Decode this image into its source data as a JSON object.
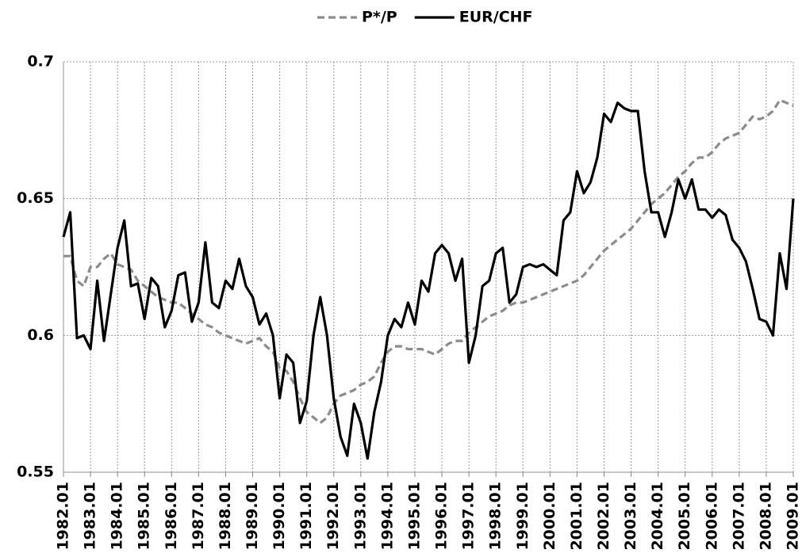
{
  "chart_data": {
    "type": "line",
    "categories": [
      "1982.01",
      null,
      null,
      null,
      "1983.01",
      null,
      null,
      null,
      "1984.01",
      null,
      null,
      null,
      "1985.01",
      null,
      null,
      null,
      "1986.01",
      null,
      null,
      null,
      "1987.01",
      null,
      null,
      null,
      "1988.01",
      null,
      null,
      null,
      "1989.01",
      null,
      null,
      null,
      "1990.01",
      null,
      null,
      null,
      "1991.01",
      null,
      null,
      null,
      "1992.01",
      null,
      null,
      null,
      "1993.01",
      null,
      null,
      null,
      "1994.01",
      null,
      null,
      null,
      "1995.01",
      null,
      null,
      null,
      "1996.01",
      null,
      null,
      null,
      "1997.01",
      null,
      null,
      null,
      "1998.01",
      null,
      null,
      null,
      "1999.01",
      null,
      null,
      null,
      "2000.01",
      null,
      null,
      null,
      "2001.01",
      null,
      null,
      null,
      "2002.01",
      null,
      null,
      null,
      "2003.01",
      null,
      null,
      null,
      "2004.01",
      null,
      null,
      null,
      "2005.01",
      null,
      null,
      null,
      "2006.01",
      null,
      null,
      null,
      "2007.01",
      null,
      null,
      null,
      "2008.01",
      null,
      null,
      null,
      "2009.01"
    ],
    "series": [
      {
        "name": "P*/P",
        "color": "#8c8c8c",
        "dashed": true,
        "values": [
          0.629,
          0.629,
          0.62,
          0.618,
          0.625,
          0.625,
          0.628,
          0.63,
          0.626,
          0.625,
          0.624,
          0.62,
          0.618,
          0.616,
          0.614,
          0.613,
          0.612,
          0.612,
          0.61,
          0.608,
          0.606,
          0.604,
          0.603,
          0.601,
          0.6,
          0.599,
          0.598,
          0.597,
          0.598,
          0.599,
          0.596,
          0.594,
          0.588,
          0.587,
          0.583,
          0.577,
          0.572,
          0.57,
          0.568,
          0.57,
          0.575,
          0.578,
          0.579,
          0.58,
          0.582,
          0.583,
          0.585,
          0.59,
          0.594,
          0.596,
          0.596,
          0.595,
          0.595,
          0.595,
          0.594,
          0.593,
          0.595,
          0.597,
          0.598,
          0.598,
          0.601,
          0.603,
          0.605,
          0.607,
          0.608,
          0.609,
          0.611,
          0.612,
          0.612,
          0.613,
          0.614,
          0.615,
          0.616,
          0.617,
          0.618,
          0.619,
          0.62,
          0.622,
          0.625,
          0.628,
          0.631,
          0.633,
          0.635,
          0.637,
          0.639,
          0.642,
          0.645,
          0.648,
          0.65,
          0.652,
          0.655,
          0.658,
          0.66,
          0.663,
          0.665,
          0.665,
          0.667,
          0.67,
          0.672,
          0.673,
          0.674,
          0.677,
          0.68,
          0.679,
          0.68,
          0.682,
          0.686,
          0.685,
          0.684
        ]
      },
      {
        "name": "EUR/CHF",
        "color": "#000000",
        "dashed": false,
        "values": [
          0.636,
          0.645,
          0.599,
          0.6,
          0.595,
          0.62,
          0.598,
          0.615,
          0.632,
          0.642,
          0.618,
          0.619,
          0.606,
          0.621,
          0.618,
          0.603,
          0.609,
          0.622,
          0.623,
          0.605,
          0.612,
          0.634,
          0.612,
          0.61,
          0.62,
          0.617,
          0.628,
          0.618,
          0.614,
          0.604,
          0.608,
          0.6,
          0.577,
          0.593,
          0.59,
          0.568,
          0.576,
          0.6,
          0.614,
          0.6,
          0.577,
          0.563,
          0.556,
          0.575,
          0.568,
          0.555,
          0.572,
          0.583,
          0.6,
          0.606,
          0.603,
          0.612,
          0.604,
          0.62,
          0.616,
          0.63,
          0.633,
          0.63,
          0.62,
          0.628,
          0.59,
          0.6,
          0.618,
          0.62,
          0.63,
          0.632,
          0.612,
          0.615,
          0.625,
          0.626,
          0.625,
          0.626,
          0.624,
          0.622,
          0.642,
          0.645,
          0.66,
          0.652,
          0.656,
          0.665,
          0.681,
          0.678,
          0.685,
          0.683,
          0.682,
          0.682,
          0.66,
          0.645,
          0.645,
          0.636,
          0.645,
          0.657,
          0.65,
          0.657,
          0.646,
          0.646,
          0.643,
          0.646,
          0.644,
          0.635,
          0.632,
          0.627,
          0.617,
          0.606,
          0.605,
          0.6,
          0.63,
          0.617,
          0.65
        ]
      }
    ],
    "ylim": [
      0.55,
      0.7
    ],
    "yticks": [
      0.55,
      0.6,
      0.65,
      0.7
    ],
    "grid": true
  }
}
